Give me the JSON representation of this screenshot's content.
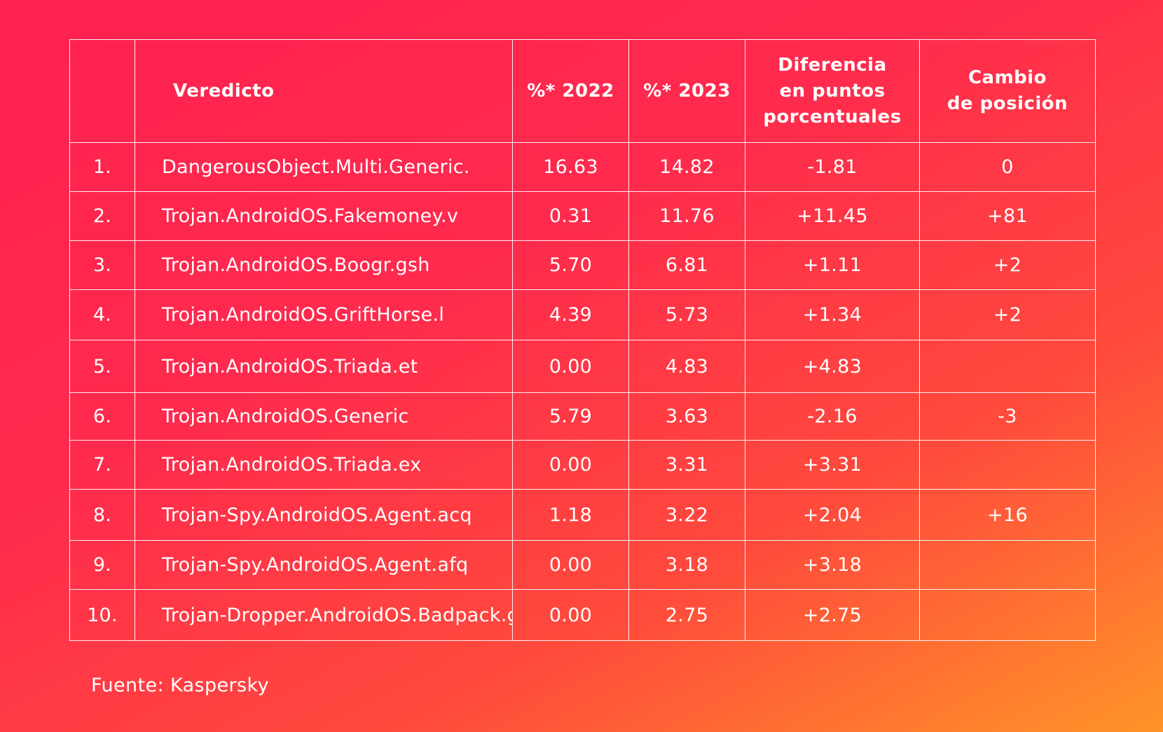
{
  "table": {
    "headers": {
      "rank": "",
      "verdict": "Veredicto",
      "pct_2022": "%* 2022",
      "pct_2023": "%* 2023",
      "difference_lines": [
        "Diferencia",
        "en puntos",
        "porcentuales"
      ],
      "position_change_lines": [
        "Cambio",
        "de posición"
      ]
    },
    "rows": [
      {
        "rank": "1.",
        "verdict": "DangerousObject.Multi.Generic.",
        "pct_2022": "16.63",
        "pct_2023": "14.82",
        "difference": "-1.81",
        "position_change": "0"
      },
      {
        "rank": "2.",
        "verdict": "Trojan.AndroidOS.Fakemoney.v",
        "pct_2022": "0.31",
        "pct_2023": "11.76",
        "difference": "+11.45",
        "position_change": "+81"
      },
      {
        "rank": "3.",
        "verdict": "Trojan.AndroidOS.Boogr.gsh",
        "pct_2022": "5.70",
        "pct_2023": "6.81",
        "difference": "+1.11",
        "position_change": "+2"
      },
      {
        "rank": "4.",
        "verdict": "Trojan.AndroidOS.GriftHorse.l",
        "pct_2022": "4.39",
        "pct_2023": "5.73",
        "difference": "+1.34",
        "position_change": "+2"
      },
      {
        "rank": "5.",
        "verdict": "Trojan.AndroidOS.Triada.et",
        "pct_2022": "0.00",
        "pct_2023": "4.83",
        "difference": "+4.83",
        "position_change": ""
      },
      {
        "rank": "6.",
        "verdict": "Trojan.AndroidOS.Generic",
        "pct_2022": "5.79",
        "pct_2023": "3.63",
        "difference": "-2.16",
        "position_change": "-3"
      },
      {
        "rank": "7.",
        "verdict": "Trojan.AndroidOS.Triada.ex",
        "pct_2022": "0.00",
        "pct_2023": "3.31",
        "difference": "+3.31",
        "position_change": ""
      },
      {
        "rank": "8.",
        "verdict": "Trojan-Spy.AndroidOS.Agent.acq",
        "pct_2022": "1.18",
        "pct_2023": "3.22",
        "difference": "+2.04",
        "position_change": "+16"
      },
      {
        "rank": "9.",
        "verdict": "Trojan-Spy.AndroidOS.Agent.afq",
        "pct_2022": "0.00",
        "pct_2023": "3.18",
        "difference": "+3.18",
        "position_change": ""
      },
      {
        "rank": "10.",
        "verdict": "Trojan-Dropper.AndroidOS.Badpack.g",
        "pct_2022": "0.00",
        "pct_2023": "2.75",
        "difference": "+2.75",
        "position_change": ""
      }
    ]
  },
  "footer": {
    "source": "Fuente: Kaspersky"
  },
  "colors": {
    "background_start": "#ff2150",
    "background_end": "#ff9428",
    "text": "#ffffff",
    "grid_lines": "#ffffff"
  }
}
